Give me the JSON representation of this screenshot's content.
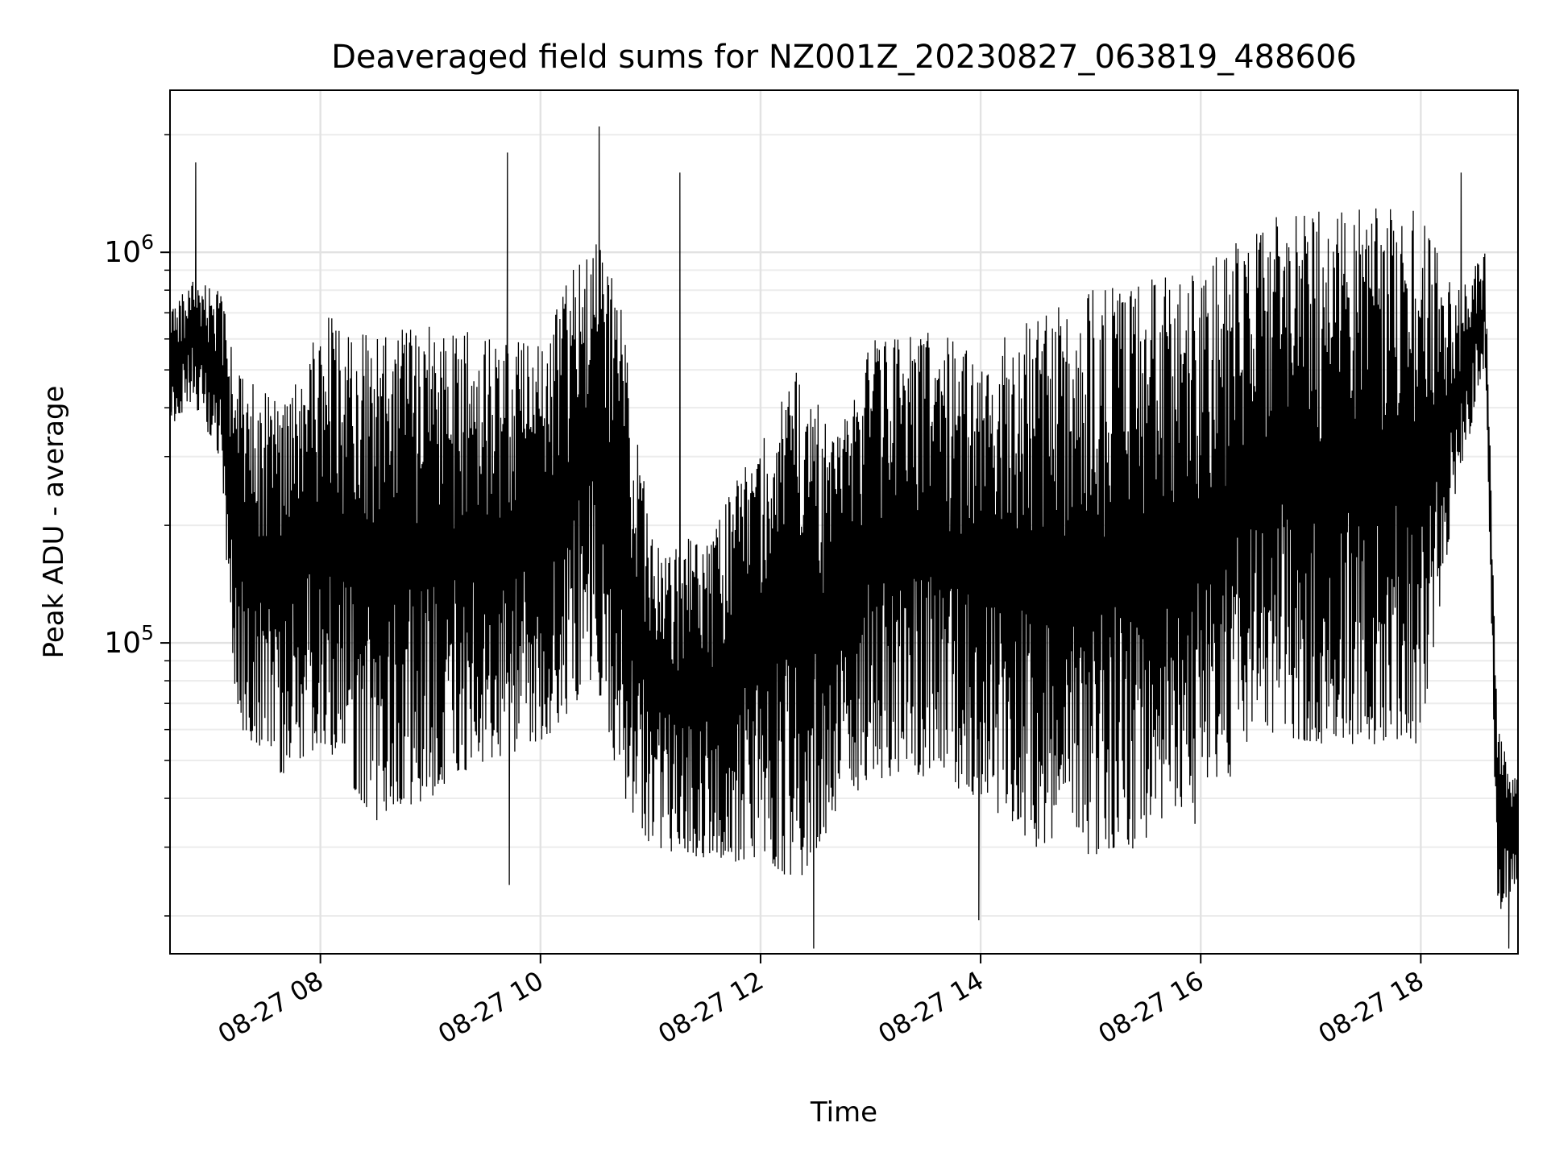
{
  "chart_data": {
    "type": "line",
    "title": "Deaveraged field sums for NZ001Z_20230827_063819_488606",
    "xlabel": "Time",
    "ylabel": "Peak ADU - average",
    "yscale": "log",
    "grid": true,
    "grid_minor": true,
    "legend": "none",
    "xlim": [
      "2023-08-27T06:38",
      "2023-08-27T18:53"
    ],
    "ylim": [
      16000,
      2600000
    ],
    "x_ticks": [
      {
        "value": "2023-08-27T08:00",
        "label": "08-27 08"
      },
      {
        "value": "2023-08-27T10:00",
        "label": "08-27 10"
      },
      {
        "value": "2023-08-27T12:00",
        "label": "08-27 12"
      },
      {
        "value": "2023-08-27T14:00",
        "label": "08-27 14"
      },
      {
        "value": "2023-08-27T16:00",
        "label": "08-27 16"
      },
      {
        "value": "2023-08-27T18:00",
        "label": "08-27 18"
      }
    ],
    "y_ticks": [
      {
        "value": 100000,
        "base": "10",
        "exp": "5"
      },
      {
        "value": 1000000,
        "base": "10",
        "exp": "6"
      }
    ],
    "series": [
      {
        "color": "#000000",
        "x_start": "2023-08-27T06:38",
        "x_end": "2023-08-27T18:53",
        "envelope": [
          {
            "x": "2023-08-27T06:38",
            "low": 350000,
            "high": 700000
          },
          {
            "x": "2023-08-27T06:50",
            "low": 420000,
            "high": 850000
          },
          {
            "x": "2023-08-27T07:05",
            "low": 300000,
            "high": 800000
          },
          {
            "x": "2023-08-27T07:15",
            "low": 60000,
            "high": 500000
          },
          {
            "x": "2023-08-27T07:40",
            "low": 45000,
            "high": 400000
          },
          {
            "x": "2023-08-27T08:00",
            "low": 55000,
            "high": 700000
          },
          {
            "x": "2023-08-27T08:30",
            "low": 35000,
            "high": 600000
          },
          {
            "x": "2023-08-27T09:00",
            "low": 40000,
            "high": 700000
          },
          {
            "x": "2023-08-27T09:30",
            "low": 50000,
            "high": 600000
          },
          {
            "x": "2023-08-27T10:00",
            "low": 55000,
            "high": 600000
          },
          {
            "x": "2023-08-27T10:30",
            "low": 80000,
            "high": 1200000
          },
          {
            "x": "2023-08-27T10:45",
            "low": 40000,
            "high": 700000
          },
          {
            "x": "2023-08-27T11:00",
            "low": 30000,
            "high": 200000
          },
          {
            "x": "2023-08-27T11:30",
            "low": 28000,
            "high": 180000
          },
          {
            "x": "2023-08-27T12:00",
            "low": 27000,
            "high": 350000
          },
          {
            "x": "2023-08-27T12:20",
            "low": 24000,
            "high": 500000
          },
          {
            "x": "2023-08-27T12:40",
            "low": 35000,
            "high": 350000
          },
          {
            "x": "2023-08-27T13:00",
            "low": 45000,
            "high": 600000
          },
          {
            "x": "2023-08-27T13:30",
            "low": 45000,
            "high": 650000
          },
          {
            "x": "2023-08-27T14:00",
            "low": 40000,
            "high": 550000
          },
          {
            "x": "2023-08-27T14:30",
            "low": 30000,
            "high": 700000
          },
          {
            "x": "2023-08-27T15:00",
            "low": 28000,
            "high": 800000
          },
          {
            "x": "2023-08-27T15:30",
            "low": 30000,
            "high": 850000
          },
          {
            "x": "2023-08-27T16:00",
            "low": 32000,
            "high": 900000
          },
          {
            "x": "2023-08-27T16:30",
            "low": 60000,
            "high": 1200000
          },
          {
            "x": "2023-08-27T17:00",
            "low": 55000,
            "high": 1300000
          },
          {
            "x": "2023-08-27T17:30",
            "low": 55000,
            "high": 1300000
          },
          {
            "x": "2023-08-27T18:00",
            "low": 55000,
            "high": 1300000
          },
          {
            "x": "2023-08-27T18:20",
            "low": 250000,
            "high": 800000
          },
          {
            "x": "2023-08-27T18:35",
            "low": 500000,
            "high": 1000000
          },
          {
            "x": "2023-08-27T18:42",
            "low": 20000,
            "high": 60000
          },
          {
            "x": "2023-08-27T18:53",
            "low": 25000,
            "high": 45000
          }
        ],
        "notable_points": [
          {
            "x": "2023-08-27T06:52",
            "y": 1700000
          },
          {
            "x": "2023-08-27T09:42",
            "y": 1800000
          },
          {
            "x": "2023-08-27T09:43",
            "y": 24000
          },
          {
            "x": "2023-08-27T10:32",
            "y": 2100000
          },
          {
            "x": "2023-08-27T11:16",
            "y": 1600000
          },
          {
            "x": "2023-08-27T12:29",
            "y": 16500.0
          },
          {
            "x": "2023-08-27T13:59",
            "y": 19500
          },
          {
            "x": "2023-08-27T18:22",
            "y": 1600000
          },
          {
            "x": "2023-08-27T18:48",
            "y": 16500
          }
        ]
      }
    ]
  }
}
